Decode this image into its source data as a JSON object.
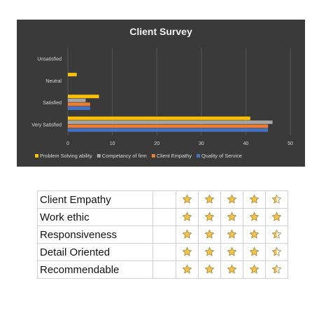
{
  "chart_data": {
    "type": "bar",
    "orientation": "horizontal",
    "title": "Client Survey",
    "categories": [
      "Very Satisfied",
      "Satisfied",
      "Neutral",
      "Unsatisfied"
    ],
    "series": [
      {
        "name": "Quality of Service",
        "color": "#4472C4",
        "values": [
          45,
          5,
          0,
          0
        ]
      },
      {
        "name": "Client Empathy",
        "color": "#ED7D31",
        "values": [
          45,
          5,
          0,
          0
        ]
      },
      {
        "name": "Competancy of firm",
        "color": "#A5A5A5",
        "values": [
          46,
          4,
          0,
          0
        ]
      },
      {
        "name": "Problem Solving ability",
        "color": "#FFC000",
        "values": [
          41,
          7,
          2,
          0
        ]
      }
    ],
    "xlim": [
      0,
      50
    ],
    "xticks": [
      "0",
      "10",
      "20",
      "30",
      "40",
      "50"
    ],
    "legend_order": [
      3,
      2,
      1,
      0
    ],
    "legend_position": "bottom",
    "background": "#3a3a3a",
    "grid": true
  },
  "ratings": {
    "rows": [
      {
        "label": "Client Empathy",
        "stars": [
          "full",
          "full",
          "full",
          "full",
          "partial"
        ]
      },
      {
        "label": "Work ethic",
        "stars": [
          "full",
          "full",
          "full",
          "full",
          "full"
        ]
      },
      {
        "label": "Responsiveness",
        "stars": [
          "full",
          "full",
          "full",
          "full",
          "partial"
        ]
      },
      {
        "label": "Detail Oriented",
        "stars": [
          "full",
          "full",
          "full",
          "full",
          "partial"
        ]
      },
      {
        "label": "Recommendable",
        "stars": [
          "full",
          "full",
          "full",
          "full",
          "partial"
        ]
      }
    ],
    "star_color": "#F2C14E"
  }
}
